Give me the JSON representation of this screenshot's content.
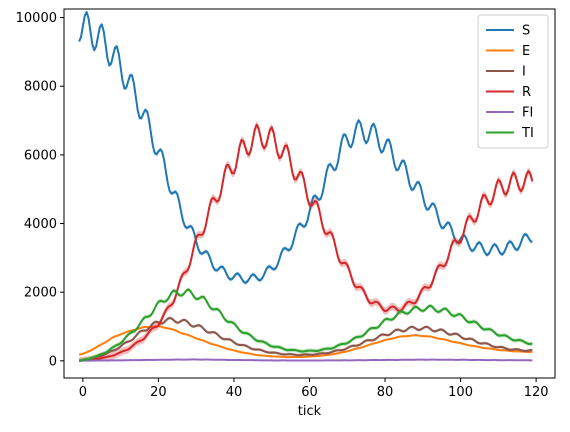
{
  "chart_data": {
    "type": "line",
    "title": "",
    "xlabel": "tick",
    "ylabel": "",
    "xlim": [
      -5,
      125
    ],
    "ylim": [
      -500,
      10250
    ],
    "xticks": [
      0,
      20,
      40,
      60,
      80,
      100,
      120
    ],
    "yticks": [
      0,
      2000,
      4000,
      6000,
      8000,
      10000
    ],
    "grid": false,
    "legend_position": "top-right",
    "series": [
      {
        "name": "S",
        "color": "#1f77b4",
        "points": [
          [
            -1,
            9800
          ],
          [
            0,
            9750
          ],
          [
            2,
            9600
          ],
          [
            4,
            9450
          ],
          [
            6,
            9220
          ],
          [
            8,
            8900
          ],
          [
            10,
            8550
          ],
          [
            12,
            8150
          ],
          [
            14,
            7700
          ],
          [
            16,
            7200
          ],
          [
            18,
            6650
          ],
          [
            20,
            6100
          ],
          [
            22,
            5500
          ],
          [
            24,
            4900
          ],
          [
            26,
            4350
          ],
          [
            28,
            3900
          ],
          [
            30,
            3480
          ],
          [
            32,
            3150
          ],
          [
            34,
            2880
          ],
          [
            36,
            2680
          ],
          [
            38,
            2540
          ],
          [
            40,
            2450
          ],
          [
            42,
            2400
          ],
          [
            44,
            2380
          ],
          [
            46,
            2420
          ],
          [
            48,
            2520
          ],
          [
            50,
            2700
          ],
          [
            52,
            2950
          ],
          [
            54,
            3250
          ],
          [
            56,
            3600
          ],
          [
            58,
            3950
          ],
          [
            60,
            4350
          ],
          [
            62,
            4750
          ],
          [
            64,
            5200
          ],
          [
            66,
            5650
          ],
          [
            68,
            6100
          ],
          [
            70,
            6450
          ],
          [
            72,
            6650
          ],
          [
            74,
            6700
          ],
          [
            76,
            6650
          ],
          [
            78,
            6500
          ],
          [
            80,
            6280
          ],
          [
            82,
            6000
          ],
          [
            84,
            5700
          ],
          [
            86,
            5400
          ],
          [
            88,
            5100
          ],
          [
            90,
            4800
          ],
          [
            92,
            4500
          ],
          [
            94,
            4200
          ],
          [
            96,
            3950
          ],
          [
            98,
            3700
          ],
          [
            100,
            3550
          ],
          [
            102,
            3420
          ],
          [
            104,
            3320
          ],
          [
            106,
            3260
          ],
          [
            108,
            3230
          ],
          [
            110,
            3240
          ],
          [
            112,
            3280
          ],
          [
            114,
            3350
          ],
          [
            116,
            3450
          ],
          [
            118,
            3580
          ],
          [
            119,
            3650
          ]
        ],
        "band": 60,
        "wiggle": 0.2
      },
      {
        "name": "E",
        "color": "#ff7f0e",
        "points": [
          [
            -1,
            180
          ],
          [
            0,
            200
          ],
          [
            2,
            300
          ],
          [
            4,
            420
          ],
          [
            6,
            550
          ],
          [
            8,
            680
          ],
          [
            10,
            780
          ],
          [
            12,
            850
          ],
          [
            14,
            920
          ],
          [
            16,
            970
          ],
          [
            18,
            1000
          ],
          [
            20,
            1000
          ],
          [
            22,
            970
          ],
          [
            24,
            900
          ],
          [
            26,
            820
          ],
          [
            28,
            740
          ],
          [
            30,
            660
          ],
          [
            32,
            580
          ],
          [
            34,
            500
          ],
          [
            36,
            430
          ],
          [
            38,
            360
          ],
          [
            40,
            300
          ],
          [
            42,
            250
          ],
          [
            44,
            210
          ],
          [
            46,
            170
          ],
          [
            48,
            150
          ],
          [
            50,
            130
          ],
          [
            52,
            120
          ],
          [
            54,
            110
          ],
          [
            56,
            110
          ],
          [
            58,
            115
          ],
          [
            60,
            125
          ],
          [
            62,
            140
          ],
          [
            64,
            160
          ],
          [
            66,
            190
          ],
          [
            68,
            230
          ],
          [
            70,
            280
          ],
          [
            72,
            340
          ],
          [
            74,
            400
          ],
          [
            76,
            470
          ],
          [
            78,
            540
          ],
          [
            80,
            600
          ],
          [
            82,
            660
          ],
          [
            84,
            700
          ],
          [
            86,
            730
          ],
          [
            88,
            740
          ],
          [
            90,
            730
          ],
          [
            92,
            700
          ],
          [
            94,
            660
          ],
          [
            96,
            610
          ],
          [
            98,
            560
          ],
          [
            100,
            510
          ],
          [
            102,
            460
          ],
          [
            104,
            420
          ],
          [
            106,
            380
          ],
          [
            108,
            350
          ],
          [
            110,
            320
          ],
          [
            112,
            300
          ],
          [
            114,
            280
          ],
          [
            116,
            270
          ],
          [
            118,
            260
          ],
          [
            119,
            260
          ]
        ],
        "band": 30,
        "wiggle": 0.05
      },
      {
        "name": "I",
        "color": "#8c564b",
        "points": [
          [
            -1,
            0
          ],
          [
            0,
            20
          ],
          [
            2,
            60
          ],
          [
            4,
            120
          ],
          [
            6,
            200
          ],
          [
            8,
            300
          ],
          [
            10,
            420
          ],
          [
            12,
            560
          ],
          [
            14,
            720
          ],
          [
            16,
            880
          ],
          [
            18,
            1020
          ],
          [
            20,
            1120
          ],
          [
            22,
            1180
          ],
          [
            24,
            1190
          ],
          [
            26,
            1160
          ],
          [
            28,
            1100
          ],
          [
            30,
            1020
          ],
          [
            32,
            930
          ],
          [
            34,
            830
          ],
          [
            36,
            730
          ],
          [
            38,
            630
          ],
          [
            40,
            540
          ],
          [
            42,
            460
          ],
          [
            44,
            390
          ],
          [
            46,
            330
          ],
          [
            48,
            280
          ],
          [
            50,
            240
          ],
          [
            52,
            210
          ],
          [
            54,
            190
          ],
          [
            56,
            180
          ],
          [
            58,
            175
          ],
          [
            60,
            180
          ],
          [
            62,
            195
          ],
          [
            64,
            220
          ],
          [
            66,
            260
          ],
          [
            68,
            310
          ],
          [
            70,
            370
          ],
          [
            72,
            440
          ],
          [
            74,
            520
          ],
          [
            76,
            600
          ],
          [
            78,
            680
          ],
          [
            80,
            760
          ],
          [
            82,
            830
          ],
          [
            84,
            890
          ],
          [
            86,
            930
          ],
          [
            88,
            950
          ],
          [
            90,
            950
          ],
          [
            92,
            930
          ],
          [
            94,
            890
          ],
          [
            96,
            840
          ],
          [
            98,
            780
          ],
          [
            100,
            710
          ],
          [
            102,
            640
          ],
          [
            104,
            570
          ],
          [
            106,
            510
          ],
          [
            108,
            450
          ],
          [
            110,
            400
          ],
          [
            112,
            360
          ],
          [
            114,
            330
          ],
          [
            116,
            310
          ],
          [
            118,
            300
          ],
          [
            119,
            300
          ]
        ],
        "band": 45,
        "wiggle": 0.22
      },
      {
        "name": "R",
        "color": "#d62728",
        "points": [
          [
            -1,
            0
          ],
          [
            0,
            10
          ],
          [
            2,
            30
          ],
          [
            4,
            60
          ],
          [
            6,
            100
          ],
          [
            8,
            160
          ],
          [
            10,
            240
          ],
          [
            12,
            350
          ],
          [
            14,
            490
          ],
          [
            16,
            660
          ],
          [
            18,
            860
          ],
          [
            20,
            1090
          ],
          [
            22,
            1400
          ],
          [
            24,
            1800
          ],
          [
            26,
            2300
          ],
          [
            28,
            2850
          ],
          [
            30,
            3400
          ],
          [
            32,
            3950
          ],
          [
            34,
            4450
          ],
          [
            36,
            4950
          ],
          [
            38,
            5400
          ],
          [
            40,
            5780
          ],
          [
            42,
            6100
          ],
          [
            44,
            6350
          ],
          [
            46,
            6520
          ],
          [
            48,
            6550
          ],
          [
            50,
            6450
          ],
          [
            52,
            6250
          ],
          [
            54,
            5950
          ],
          [
            56,
            5600
          ],
          [
            58,
            5200
          ],
          [
            60,
            4800
          ],
          [
            62,
            4380
          ],
          [
            64,
            3950
          ],
          [
            66,
            3500
          ],
          [
            68,
            3050
          ],
          [
            70,
            2650
          ],
          [
            72,
            2300
          ],
          [
            74,
            2000
          ],
          [
            76,
            1780
          ],
          [
            78,
            1620
          ],
          [
            80,
            1530
          ],
          [
            82,
            1500
          ],
          [
            84,
            1530
          ],
          [
            86,
            1620
          ],
          [
            88,
            1780
          ],
          [
            90,
            2000
          ],
          [
            92,
            2280
          ],
          [
            94,
            2600
          ],
          [
            96,
            2950
          ],
          [
            98,
            3300
          ],
          [
            100,
            3650
          ],
          [
            102,
            3980
          ],
          [
            104,
            4300
          ],
          [
            106,
            4580
          ],
          [
            108,
            4820
          ],
          [
            110,
            5000
          ],
          [
            112,
            5120
          ],
          [
            114,
            5200
          ],
          [
            116,
            5230
          ],
          [
            118,
            5240
          ],
          [
            119,
            5230
          ]
        ],
        "band": 110,
        "wiggle": 0.22
      },
      {
        "name": "FI",
        "color": "#9467bd",
        "points": [
          [
            -1,
            0
          ],
          [
            0,
            5
          ],
          [
            10,
            15
          ],
          [
            20,
            30
          ],
          [
            30,
            40
          ],
          [
            40,
            25
          ],
          [
            50,
            12
          ],
          [
            60,
            10
          ],
          [
            70,
            15
          ],
          [
            80,
            25
          ],
          [
            90,
            35
          ],
          [
            100,
            30
          ],
          [
            110,
            20
          ],
          [
            119,
            15
          ]
        ],
        "band": 10,
        "wiggle": 0.3
      },
      {
        "name": "TI",
        "color": "#2ca02c",
        "points": [
          [
            -1,
            0
          ],
          [
            0,
            25
          ],
          [
            2,
            75
          ],
          [
            4,
            150
          ],
          [
            6,
            250
          ],
          [
            8,
            380
          ],
          [
            10,
            540
          ],
          [
            12,
            730
          ],
          [
            14,
            940
          ],
          [
            16,
            1170
          ],
          [
            18,
            1400
          ],
          [
            20,
            1640
          ],
          [
            22,
            1830
          ],
          [
            24,
            1950
          ],
          [
            26,
            2000
          ],
          [
            28,
            1980
          ],
          [
            30,
            1900
          ],
          [
            32,
            1770
          ],
          [
            34,
            1600
          ],
          [
            36,
            1410
          ],
          [
            38,
            1220
          ],
          [
            40,
            1040
          ],
          [
            42,
            880
          ],
          [
            44,
            740
          ],
          [
            46,
            620
          ],
          [
            48,
            520
          ],
          [
            50,
            440
          ],
          [
            52,
            380
          ],
          [
            54,
            330
          ],
          [
            56,
            300
          ],
          [
            58,
            285
          ],
          [
            60,
            285
          ],
          [
            62,
            300
          ],
          [
            64,
            330
          ],
          [
            66,
            380
          ],
          [
            68,
            450
          ],
          [
            70,
            540
          ],
          [
            72,
            640
          ],
          [
            74,
            760
          ],
          [
            76,
            890
          ],
          [
            78,
            1020
          ],
          [
            80,
            1150
          ],
          [
            82,
            1270
          ],
          [
            84,
            1370
          ],
          [
            86,
            1450
          ],
          [
            88,
            1500
          ],
          [
            90,
            1530
          ],
          [
            92,
            1530
          ],
          [
            94,
            1500
          ],
          [
            96,
            1450
          ],
          [
            98,
            1380
          ],
          [
            100,
            1290
          ],
          [
            102,
            1190
          ],
          [
            104,
            1080
          ],
          [
            106,
            970
          ],
          [
            108,
            870
          ],
          [
            110,
            780
          ],
          [
            112,
            700
          ],
          [
            114,
            630
          ],
          [
            116,
            570
          ],
          [
            118,
            520
          ],
          [
            119,
            500
          ]
        ],
        "band": 60,
        "wiggle": 0.2
      }
    ]
  }
}
